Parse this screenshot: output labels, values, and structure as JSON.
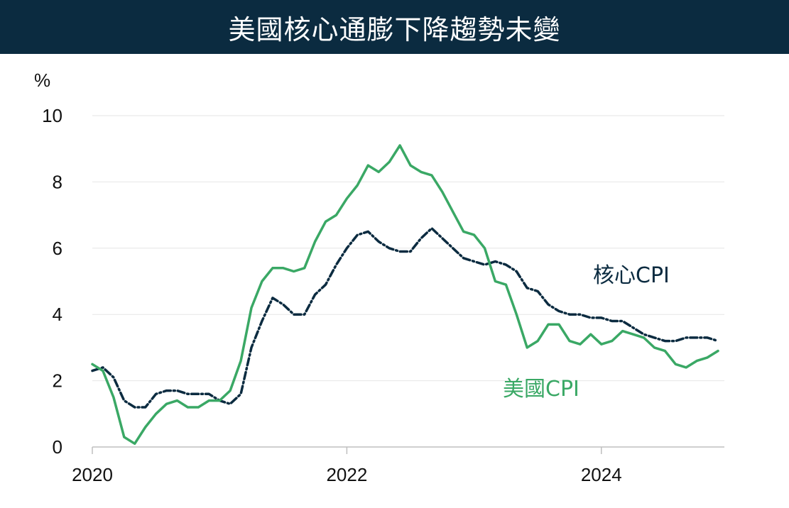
{
  "header": {
    "title": "美國核心通膨下降趨勢未變"
  },
  "colors": {
    "header_bg": "#0b2b40",
    "core": "#0b2b40",
    "headline": "#3aa865",
    "grid": "#e6e6e6"
  },
  "chart_data": {
    "type": "line",
    "title": "美國核心通膨下降趨勢未變",
    "ylabel": "%",
    "ylim": [
      0,
      10
    ],
    "y_ticks": [
      "0",
      "2",
      "4",
      "6",
      "8",
      "10"
    ],
    "x_ticks": [
      "2020",
      "2022",
      "2024"
    ],
    "x": [
      "2020-01",
      "2020-02",
      "2020-03",
      "2020-04",
      "2020-05",
      "2020-06",
      "2020-07",
      "2020-08",
      "2020-09",
      "2020-10",
      "2020-11",
      "2020-12",
      "2021-01",
      "2021-02",
      "2021-03",
      "2021-04",
      "2021-05",
      "2021-06",
      "2021-07",
      "2021-08",
      "2021-09",
      "2021-10",
      "2021-11",
      "2021-12",
      "2022-01",
      "2022-02",
      "2022-03",
      "2022-04",
      "2022-05",
      "2022-06",
      "2022-07",
      "2022-08",
      "2022-09",
      "2022-10",
      "2022-11",
      "2022-12",
      "2023-01",
      "2023-02",
      "2023-03",
      "2023-04",
      "2023-05",
      "2023-06",
      "2023-07",
      "2023-08",
      "2023-09",
      "2023-10",
      "2023-11",
      "2023-12",
      "2024-01",
      "2024-02",
      "2024-03",
      "2024-04",
      "2024-05",
      "2024-06",
      "2024-07",
      "2024-08",
      "2024-09",
      "2024-10",
      "2024-11",
      "2024-12"
    ],
    "series": [
      {
        "name": "核心CPI",
        "color": "#0b2b40",
        "style": "dash-dot",
        "values": [
          2.3,
          2.4,
          2.1,
          1.4,
          1.2,
          1.2,
          1.6,
          1.7,
          1.7,
          1.6,
          1.6,
          1.6,
          1.4,
          1.3,
          1.6,
          3.0,
          3.8,
          4.5,
          4.3,
          4.0,
          4.0,
          4.6,
          4.9,
          5.5,
          6.0,
          6.4,
          6.5,
          6.2,
          6.0,
          5.9,
          5.9,
          6.3,
          6.6,
          6.3,
          6.0,
          5.7,
          5.6,
          5.5,
          5.6,
          5.5,
          5.3,
          4.8,
          4.7,
          4.3,
          4.1,
          4.0,
          4.0,
          3.9,
          3.9,
          3.8,
          3.8,
          3.6,
          3.4,
          3.3,
          3.2,
          3.2,
          3.3,
          3.3,
          3.3,
          3.2
        ]
      },
      {
        "name": "美國CPI",
        "color": "#3aa865",
        "style": "solid",
        "values": [
          2.5,
          2.3,
          1.5,
          0.3,
          0.1,
          0.6,
          1.0,
          1.3,
          1.4,
          1.2,
          1.2,
          1.4,
          1.4,
          1.7,
          2.6,
          4.2,
          5.0,
          5.4,
          5.4,
          5.3,
          5.4,
          6.2,
          6.8,
          7.0,
          7.5,
          7.9,
          8.5,
          8.3,
          8.6,
          9.1,
          8.5,
          8.3,
          8.2,
          7.7,
          7.1,
          6.5,
          6.4,
          6.0,
          5.0,
          4.9,
          4.0,
          3.0,
          3.2,
          3.7,
          3.7,
          3.2,
          3.1,
          3.4,
          3.1,
          3.2,
          3.5,
          3.4,
          3.3,
          3.0,
          2.9,
          2.5,
          2.4,
          2.6,
          2.7,
          2.9
        ]
      }
    ],
    "grid": true,
    "legend": "inline labels"
  }
}
